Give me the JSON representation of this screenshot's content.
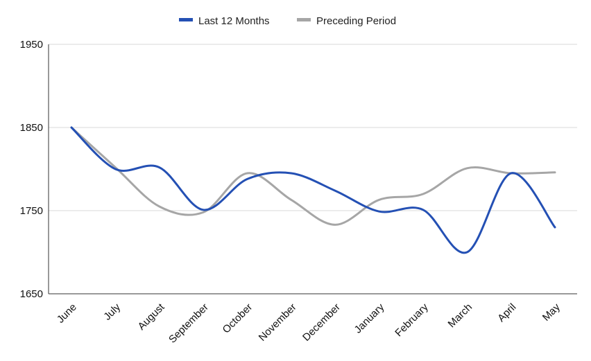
{
  "chart_data": {
    "type": "line",
    "title": "",
    "xlabel": "",
    "ylabel": "",
    "categories": [
      "June",
      "July",
      "August",
      "September",
      "October",
      "November",
      "December",
      "January",
      "February",
      "March",
      "April",
      "May"
    ],
    "series": [
      {
        "name": "Last 12 Months",
        "color": "#2450b4",
        "values": [
          1850,
          1800,
          1802,
          1751,
          1788,
          1795,
          1774,
          1749,
          1751,
          1700,
          1795,
          1730
        ]
      },
      {
        "name": "Preceding Period",
        "color": "#a6a6a6",
        "values": [
          1850,
          1802,
          1755,
          1748,
          1795,
          1763,
          1733,
          1763,
          1770,
          1801,
          1795,
          1796
        ]
      }
    ],
    "ylim": [
      1650,
      1950
    ],
    "yticks": [
      1650,
      1750,
      1850,
      1950
    ],
    "grid": true,
    "legend_position": "top-center",
    "smooth": true
  }
}
